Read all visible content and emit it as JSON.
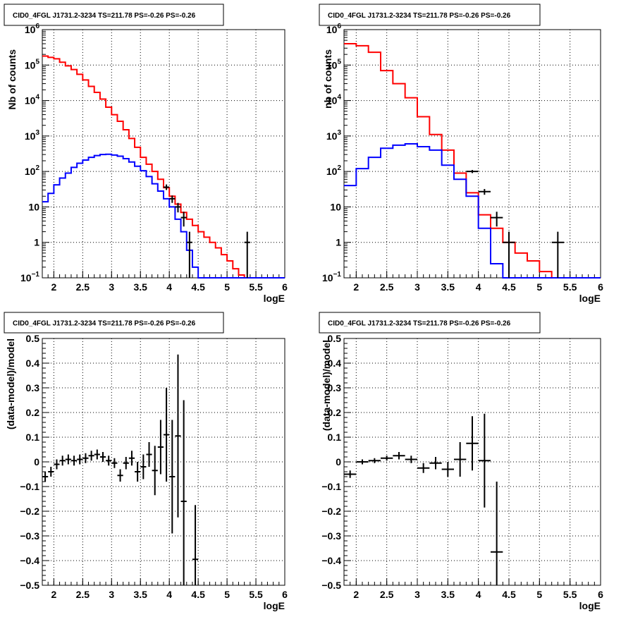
{
  "chart_data": [
    {
      "id": "p1",
      "type": "step-histogram",
      "title": "CID0_4FGL J1731.2-3234 TS=211.78 PS=-0.26 PS=-0.26",
      "xlabel": "logE",
      "ylabel": "Nb of counts",
      "xlim": [
        1.8,
        6.0
      ],
      "ylim": [
        0.1,
        1000000
      ],
      "yscale": "log",
      "grid": true,
      "xticks": [
        "2",
        "2.5",
        "3",
        "3.5",
        "4",
        "4.5",
        "5",
        "5.5",
        "6"
      ],
      "yticks": [
        {
          "base": "10",
          "exp": "−1"
        },
        {
          "base": "1",
          "exp": ""
        },
        {
          "base": "10",
          "exp": ""
        },
        {
          "base": "10",
          "exp": "2"
        },
        {
          "base": "10",
          "exp": "3"
        },
        {
          "base": "10",
          "exp": "4"
        },
        {
          "base": "10",
          "exp": "5"
        },
        {
          "base": "10",
          "exp": "6"
        }
      ],
      "bin_edges": [
        1.8,
        1.9,
        2.0,
        2.1,
        2.2,
        2.3,
        2.4,
        2.5,
        2.6,
        2.7,
        2.8,
        2.9,
        3.0,
        3.1,
        3.2,
        3.3,
        3.4,
        3.5,
        3.6,
        3.7,
        3.8,
        3.9,
        4.0,
        4.1,
        4.2,
        4.3,
        4.4,
        4.5,
        4.6,
        4.7,
        4.8,
        4.9,
        5.0,
        5.1,
        5.2,
        5.3,
        5.4,
        5.5,
        5.6,
        5.7,
        5.8,
        5.9,
        6.0
      ],
      "series": [
        {
          "color": "#ff0000",
          "values": [
            180000,
            165000,
            150000,
            120000,
            95000,
            75000,
            55000,
            38000,
            25000,
            17000,
            11000,
            6500,
            4000,
            2600,
            1500,
            850,
            480,
            250,
            160,
            100,
            60,
            35,
            20,
            12,
            7,
            4.5,
            3,
            2,
            1.4,
            1,
            0.7,
            0.45,
            0.3,
            0.18,
            0.12,
            0.08,
            0.05,
            0.05,
            0.05,
            0.05,
            0.05,
            0.05
          ]
        },
        {
          "color": "#0000ff",
          "values": [
            14,
            24,
            42,
            65,
            90,
            130,
            170,
            210,
            250,
            280,
            300,
            305,
            290,
            270,
            230,
            185,
            140,
            105,
            72,
            45,
            28,
            17,
            10,
            4.5,
            2,
            0.6,
            0.2,
            0.1,
            0.05,
            0.05,
            0.05,
            0.05,
            0.05,
            0.05,
            0.05,
            0.05,
            0.05,
            0.05,
            0.05,
            0.05,
            0.05,
            0.05
          ]
        }
      ],
      "points": [
        {
          "x": 3.95,
          "y": 36,
          "xerr": 0.05,
          "ylo": 30,
          "yhi": 43
        },
        {
          "x": 4.05,
          "y": 17,
          "xerr": 0.05,
          "ylo": 13,
          "yhi": 21
        },
        {
          "x": 4.15,
          "y": 10,
          "xerr": 0.05,
          "ylo": 7,
          "yhi": 13
        },
        {
          "x": 4.25,
          "y": 5,
          "xerr": 0.05,
          "ylo": 2.8,
          "yhi": 7.3
        },
        {
          "x": 4.35,
          "y": 1,
          "xerr": 0.05,
          "ylo": 0.1,
          "yhi": 2
        },
        {
          "x": 5.35,
          "y": 1,
          "xerr": 0.05,
          "ylo": 0.1,
          "yhi": 2
        }
      ]
    },
    {
      "id": "p2",
      "type": "step-histogram",
      "title": "CID0_4FGL J1731.2-3234 TS=211.78 PS=-0.26 PS=-0.26",
      "xlabel": "logE",
      "ylabel": "nb of counts",
      "xlim": [
        1.8,
        6.0
      ],
      "ylim": [
        0.1,
        1000000
      ],
      "yscale": "log",
      "grid": true,
      "xticks": [
        "2",
        "2.5",
        "3",
        "3.5",
        "4",
        "4.5",
        "5",
        "5.5",
        "6"
      ],
      "yticks": [
        {
          "base": "10",
          "exp": "−1"
        },
        {
          "base": "1",
          "exp": ""
        },
        {
          "base": "10",
          "exp": ""
        },
        {
          "base": "10",
          "exp": "2"
        },
        {
          "base": "10",
          "exp": "3"
        },
        {
          "base": "10",
          "exp": "4"
        },
        {
          "base": "10",
          "exp": "5"
        },
        {
          "base": "10",
          "exp": "6"
        }
      ],
      "bin_edges": [
        1.8,
        2.0,
        2.2,
        2.4,
        2.6,
        2.8,
        3.0,
        3.2,
        3.4,
        3.6,
        3.8,
        4.0,
        4.2,
        4.4,
        4.6,
        4.8,
        5.0,
        5.2,
        5.4,
        5.6,
        5.8,
        6.0
      ],
      "series": [
        {
          "color": "#ff0000",
          "values": [
            400000,
            350000,
            230000,
            70000,
            30000,
            12000,
            3500,
            1100,
            400,
            90,
            25,
            6,
            2.5,
            1,
            0.5,
            0.3,
            0.15,
            0.05,
            0.05,
            0.05,
            0.05
          ]
        },
        {
          "color": "#0000ff",
          "values": [
            40,
            120,
            250,
            450,
            550,
            600,
            500,
            400,
            150,
            60,
            20,
            2.5,
            0.25,
            0.05,
            0.05,
            0.05,
            0.05,
            0.05,
            0.05,
            0.05,
            0.05
          ]
        }
      ],
      "points": [
        {
          "x": 3.9,
          "y": 100,
          "xerr": 0.1,
          "ylo": 90,
          "yhi": 110
        },
        {
          "x": 4.1,
          "y": 27,
          "xerr": 0.1,
          "ylo": 22,
          "yhi": 32
        },
        {
          "x": 4.3,
          "y": 5,
          "xerr": 0.1,
          "ylo": 2.8,
          "yhi": 7.3
        },
        {
          "x": 4.5,
          "y": 1,
          "xerr": 0.1,
          "ylo": 0.1,
          "yhi": 2
        },
        {
          "x": 5.3,
          "y": 1,
          "xerr": 0.1,
          "ylo": 0.1,
          "yhi": 2
        }
      ]
    },
    {
      "id": "p3",
      "type": "scatter-errorbars",
      "title": "CID0_4FGL J1731.2-3234 TS=211.78 PS=-0.26 PS=-0.26",
      "xlabel": "logE",
      "ylabel": "(data-model)/model",
      "xlim": [
        1.8,
        6.0
      ],
      "ylim": [
        -0.5,
        0.5
      ],
      "yscale": "linear",
      "grid": true,
      "xticks": [
        "2",
        "2.5",
        "3",
        "3.5",
        "4",
        "4.5",
        "5",
        "5.5",
        "6"
      ],
      "yticks": [
        "−0.5",
        "−0.4",
        "−0.3",
        "−0.2",
        "−0.1",
        "0",
        "0.1",
        "0.2",
        "0.3",
        "0.4",
        "0.5"
      ],
      "ytick_values": [
        -0.5,
        -0.4,
        -0.3,
        -0.2,
        -0.1,
        0,
        0.1,
        0.2,
        0.3,
        0.4,
        0.5
      ],
      "points": [
        {
          "x": 1.85,
          "y": -0.06,
          "xerr": 0.05,
          "yerr": 0.02
        },
        {
          "x": 1.95,
          "y": -0.04,
          "xerr": 0.05,
          "yerr": 0.02
        },
        {
          "x": 2.05,
          "y": -0.01,
          "xerr": 0.05,
          "yerr": 0.02
        },
        {
          "x": 2.15,
          "y": 0.005,
          "xerr": 0.05,
          "yerr": 0.02
        },
        {
          "x": 2.25,
          "y": 0.01,
          "xerr": 0.05,
          "yerr": 0.02
        },
        {
          "x": 2.35,
          "y": 0.005,
          "xerr": 0.05,
          "yerr": 0.02
        },
        {
          "x": 2.45,
          "y": 0.01,
          "xerr": 0.05,
          "yerr": 0.02
        },
        {
          "x": 2.55,
          "y": 0.015,
          "xerr": 0.05,
          "yerr": 0.02
        },
        {
          "x": 2.65,
          "y": 0.025,
          "xerr": 0.05,
          "yerr": 0.02
        },
        {
          "x": 2.75,
          "y": 0.03,
          "xerr": 0.05,
          "yerr": 0.02
        },
        {
          "x": 2.85,
          "y": 0.02,
          "xerr": 0.05,
          "yerr": 0.02
        },
        {
          "x": 2.95,
          "y": 0.005,
          "xerr": 0.05,
          "yerr": 0.02
        },
        {
          "x": 3.05,
          "y": -0.005,
          "xerr": 0.05,
          "yerr": 0.02
        },
        {
          "x": 3.15,
          "y": -0.055,
          "xerr": 0.05,
          "yerr": 0.025
        },
        {
          "x": 3.25,
          "y": -0.005,
          "xerr": 0.05,
          "yerr": 0.025
        },
        {
          "x": 3.35,
          "y": 0.015,
          "xerr": 0.05,
          "yerr": 0.03
        },
        {
          "x": 3.45,
          "y": -0.04,
          "xerr": 0.05,
          "yerr": 0.04
        },
        {
          "x": 3.55,
          "y": -0.02,
          "xerr": 0.05,
          "yerr": 0.05
        },
        {
          "x": 3.65,
          "y": 0.03,
          "xerr": 0.05,
          "yerr": 0.05
        },
        {
          "x": 3.75,
          "y": -0.035,
          "xerr": 0.05,
          "yerr": 0.1
        },
        {
          "x": 3.85,
          "y": 0.06,
          "xerr": 0.05,
          "yerr": 0.11
        },
        {
          "x": 3.95,
          "y": 0.11,
          "xerr": 0.05,
          "yerr": 0.19
        },
        {
          "x": 4.05,
          "y": -0.06,
          "xerr": 0.05,
          "yerr": 0.23
        },
        {
          "x": 4.15,
          "y": 0.105,
          "xerr": 0.05,
          "yerr": 0.33
        },
        {
          "x": 4.25,
          "y": -0.16,
          "xerr": 0.05,
          "yerr": 0.41
        },
        {
          "x": 4.45,
          "y": -0.395,
          "xerr": 0.05,
          "yerr": 0.22
        }
      ]
    },
    {
      "id": "p4",
      "type": "scatter-errorbars",
      "title": "CID0_4FGL J1731.2-3234 TS=211.78 PS=-0.26 PS=-0.26",
      "xlabel": "logE",
      "ylabel": "(data-model)/model",
      "xlim": [
        1.8,
        6.0
      ],
      "ylim": [
        -0.5,
        0.5
      ],
      "yscale": "linear",
      "grid": true,
      "xticks": [
        "2",
        "2.5",
        "3",
        "3.5",
        "4",
        "4.5",
        "5",
        "5.5",
        "6"
      ],
      "yticks": [
        "−0.5",
        "−0.4",
        "−0.3",
        "−0.2",
        "−0.1",
        "0",
        "0.1",
        "0.2",
        "0.3",
        "0.4",
        "0.5"
      ],
      "ytick_values": [
        -0.5,
        -0.4,
        -0.3,
        -0.2,
        -0.1,
        0,
        0.1,
        0.2,
        0.3,
        0.4,
        0.5
      ],
      "points": [
        {
          "x": 1.9,
          "y": -0.05,
          "xerr": 0.1,
          "yerr": 0.015
        },
        {
          "x": 2.1,
          "y": 0.0,
          "xerr": 0.1,
          "yerr": 0.01
        },
        {
          "x": 2.3,
          "y": 0.005,
          "xerr": 0.1,
          "yerr": 0.01
        },
        {
          "x": 2.5,
          "y": 0.015,
          "xerr": 0.1,
          "yerr": 0.01
        },
        {
          "x": 2.7,
          "y": 0.025,
          "xerr": 0.1,
          "yerr": 0.015
        },
        {
          "x": 2.9,
          "y": 0.01,
          "xerr": 0.1,
          "yerr": 0.015
        },
        {
          "x": 3.1,
          "y": -0.025,
          "xerr": 0.1,
          "yerr": 0.02
        },
        {
          "x": 3.3,
          "y": -0.005,
          "xerr": 0.1,
          "yerr": 0.025
        },
        {
          "x": 3.5,
          "y": -0.03,
          "xerr": 0.1,
          "yerr": 0.03
        },
        {
          "x": 3.7,
          "y": 0.01,
          "xerr": 0.1,
          "yerr": 0.07
        },
        {
          "x": 3.9,
          "y": 0.075,
          "xerr": 0.1,
          "yerr": 0.11
        },
        {
          "x": 4.1,
          "y": 0.005,
          "xerr": 0.1,
          "yerr": 0.19
        },
        {
          "x": 4.3,
          "y": -0.365,
          "xerr": 0.1,
          "yerr": 0.285
        }
      ]
    }
  ]
}
